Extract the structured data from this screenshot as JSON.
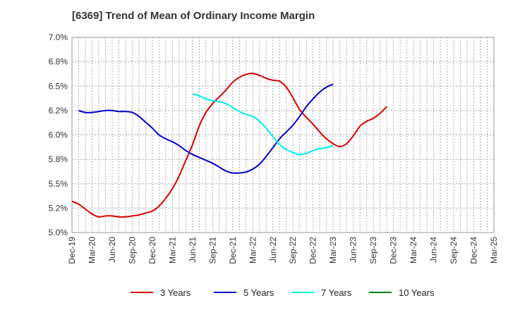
{
  "title": "[6369]  Trend of Mean of Ordinary Income Margin",
  "chart_data": {
    "type": "line",
    "title": "[6369]  Trend of Mean of Ordinary Income Margin",
    "xlabel": "",
    "ylabel": "",
    "x_ticks": [
      "Dec-19",
      "Mar-20",
      "Jun-20",
      "Sep-20",
      "Dec-20",
      "Mar-21",
      "Jun-21",
      "Sep-21",
      "Dec-21",
      "Mar-22",
      "Jun-22",
      "Sep-22",
      "Dec-22",
      "Mar-23",
      "Jun-23",
      "Sep-23",
      "Dec-23",
      "Mar-24",
      "Jun-24",
      "Sep-24",
      "Dec-24",
      "Mar-25"
    ],
    "y_ticks": [
      "5.0%",
      "5.2%",
      "5.5%",
      "5.8%",
      "6.0%",
      "6.2%",
      "6.5%",
      "6.8%",
      "7.0%"
    ],
    "ylim": [
      5.0,
      7.0
    ],
    "grid": true,
    "legend_position": "bottom",
    "series": [
      {
        "name": "3 Years",
        "color": "#dd0000",
        "start_index": 0,
        "values": [
          5.32,
          5.29,
          5.24,
          5.19,
          5.16,
          5.17,
          5.17,
          5.16,
          5.16,
          5.17,
          5.18,
          5.2,
          5.22,
          5.27,
          5.35,
          5.45,
          5.58,
          5.74,
          5.9,
          6.09,
          6.23,
          6.32,
          6.39,
          6.46,
          6.54,
          6.59,
          6.62,
          6.63,
          6.61,
          6.58,
          6.56,
          6.55,
          6.49,
          6.38,
          6.26,
          6.18,
          6.11,
          6.03,
          5.96,
          5.91,
          5.88,
          5.91,
          5.99,
          6.09,
          6.14,
          6.17,
          6.22,
          6.29
        ]
      },
      {
        "name": "5 Years",
        "color": "#0000cc",
        "start_index": 1,
        "values": [
          6.25,
          6.23,
          6.23,
          6.24,
          6.25,
          6.25,
          6.24,
          6.24,
          6.23,
          6.19,
          6.13,
          6.07,
          6.0,
          5.96,
          5.93,
          5.89,
          5.84,
          5.8,
          5.77,
          5.74,
          5.71,
          5.67,
          5.63,
          5.61,
          5.61,
          5.62,
          5.65,
          5.7,
          5.78,
          5.87,
          5.96,
          6.03,
          6.1,
          6.19,
          6.29,
          6.37,
          6.44,
          6.49,
          6.52
        ]
      },
      {
        "name": "7 Years",
        "color": "#00eeee",
        "start_index": 18,
        "values": [
          6.42,
          6.4,
          6.37,
          6.35,
          6.34,
          6.32,
          6.28,
          6.24,
          6.21,
          6.19,
          6.14,
          6.07,
          5.98,
          5.9,
          5.85,
          5.82,
          5.8,
          5.81,
          5.84,
          5.86,
          5.87,
          5.89
        ]
      },
      {
        "name": "10 Years",
        "color": "#008000",
        "start_index": 0,
        "values": []
      }
    ]
  }
}
